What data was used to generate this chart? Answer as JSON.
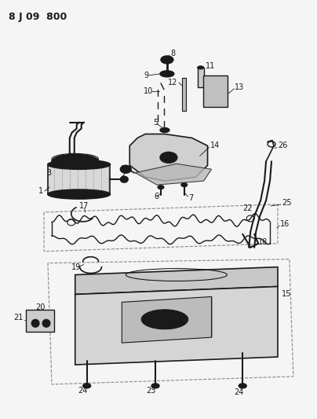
{
  "title": "8 J 09  800",
  "bg_color": "#f5f5f5",
  "line_color": "#1a1a1a",
  "fig_width": 4.04,
  "fig_height": 5.33,
  "dpi": 100
}
